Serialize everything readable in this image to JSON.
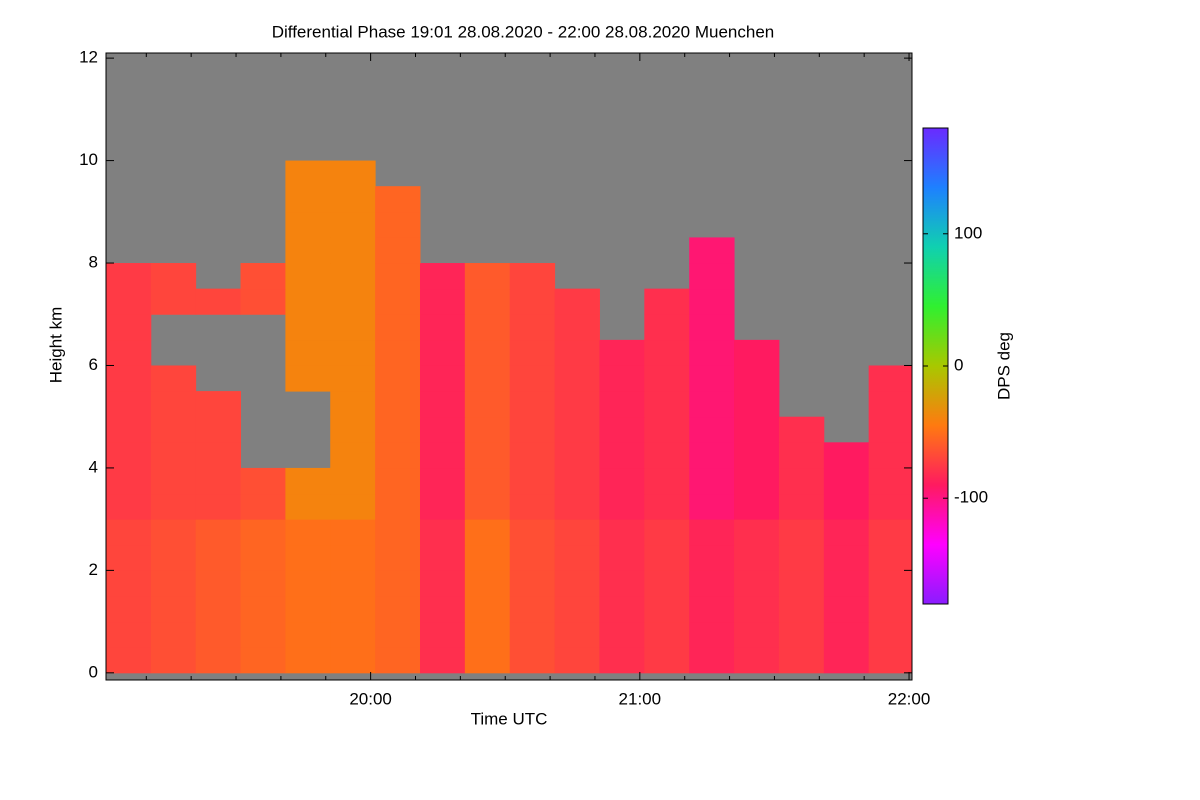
{
  "chart_data": {
    "type": "heatmap",
    "title": "Differential Phase   19:01 28.08.2020 - 22:00 28.08.2020 Muenchen",
    "x_label": "Time UTC",
    "y_label": "Height km",
    "colorbar_label": "DPS deg",
    "missing_color": "#808080",
    "colorscale": [
      "#8a1cff",
      "#ff00ff",
      "#ff1a60",
      "#ff7a10",
      "#a8c800",
      "#30f030",
      "#10d0b0",
      "#1e80ff",
      "#6a2aff"
    ],
    "zlim": [
      -180,
      180
    ],
    "zticks": [
      -100,
      0,
      100
    ],
    "xlim": [
      19.017,
      22.011
    ],
    "xticks": [
      {
        "value": 20,
        "label": "20:00"
      },
      {
        "value": 21,
        "label": "21:00"
      },
      {
        "value": 22,
        "label": "22:00"
      }
    ],
    "xminorticks": [
      19.1667,
      19.3333,
      19.5,
      19.6667,
      19.8333,
      20.1667,
      20.3333,
      20.5,
      20.6667,
      20.8333,
      21.1667,
      21.3333,
      21.5,
      21.6667,
      21.8333
    ],
    "ylim": [
      -0.14,
      12.1
    ],
    "yticks": [
      0,
      2,
      4,
      6,
      8,
      10,
      12
    ],
    "x": [
      19.1,
      19.2667,
      19.4333,
      19.6,
      19.7667,
      19.9333,
      20.1,
      20.2667,
      20.4333,
      20.6,
      20.7667,
      20.9333,
      21.1,
      21.2667,
      21.4333,
      21.6,
      21.7667,
      21.9333
    ],
    "y": [
      0.25,
      0.75,
      1.25,
      1.75,
      2.25,
      2.75,
      3.25,
      3.75,
      4.25,
      4.75,
      5.25,
      5.75,
      6.25,
      6.75,
      7.25,
      7.75,
      8.25,
      8.75,
      9.25,
      9.75
    ],
    "z": [
      [
        -70,
        -65,
        -60,
        -55,
        -50,
        -50,
        -55,
        -80,
        -50,
        -65,
        -70,
        -80,
        -75,
        -85,
        -80,
        -75,
        -85,
        -75
      ],
      [
        -70,
        -65,
        -60,
        -55,
        -50,
        -50,
        -55,
        -80,
        -50,
        -65,
        -70,
        -80,
        -75,
        -85,
        -80,
        -75,
        -85,
        -75
      ],
      [
        -70,
        -65,
        -60,
        -55,
        -50,
        -50,
        -55,
        -80,
        -50,
        -65,
        -70,
        -80,
        -75,
        -85,
        -80,
        -75,
        -85,
        -75
      ],
      [
        -70,
        -65,
        -60,
        -55,
        -50,
        -50,
        -55,
        -80,
        -50,
        -65,
        -70,
        -80,
        -75,
        -85,
        -80,
        -75,
        -85,
        -75
      ],
      [
        -70,
        -65,
        -60,
        -55,
        -50,
        -50,
        -55,
        -80,
        -50,
        -65,
        -70,
        -80,
        -75,
        -85,
        -80,
        -75,
        -85,
        -75
      ],
      [
        -70,
        -65,
        -60,
        -55,
        -50,
        -50,
        -55,
        -80,
        -50,
        -65,
        -70,
        -80,
        -75,
        -85,
        -80,
        -75,
        -85,
        -75
      ],
      [
        -75,
        -70,
        -70,
        -65,
        -40,
        -40,
        -55,
        -85,
        -60,
        -70,
        -75,
        -85,
        -80,
        -95,
        -90,
        -80,
        -90,
        -80
      ],
      [
        -75,
        -70,
        -70,
        -65,
        -40,
        -40,
        -55,
        -85,
        -60,
        -70,
        -75,
        -85,
        -80,
        -95,
        -90,
        -80,
        -90,
        -80
      ],
      [
        -75,
        -70,
        -70,
        null,
        null,
        -40,
        -55,
        -85,
        -60,
        -70,
        -75,
        -85,
        -80,
        -95,
        -90,
        -80,
        -90,
        -80
      ],
      [
        -75,
        -70,
        -70,
        null,
        null,
        -40,
        -55,
        -85,
        -60,
        -70,
        -75,
        -85,
        -80,
        -95,
        -90,
        -80,
        null,
        -80
      ],
      [
        -75,
        -70,
        -70,
        null,
        null,
        -40,
        -55,
        -85,
        -60,
        -70,
        -75,
        -85,
        -80,
        -95,
        -90,
        null,
        null,
        -80
      ],
      [
        -75,
        -70,
        null,
        null,
        -40,
        -40,
        -55,
        -85,
        -60,
        -70,
        -75,
        -85,
        -80,
        -95,
        -90,
        null,
        null,
        -80
      ],
      [
        -75,
        null,
        null,
        null,
        -40,
        -40,
        -55,
        -85,
        -60,
        -70,
        -75,
        -85,
        -80,
        -95,
        -90,
        null,
        null,
        null
      ],
      [
        -75,
        null,
        null,
        null,
        -40,
        -40,
        -55,
        -85,
        -60,
        -70,
        -75,
        null,
        -80,
        -95,
        null,
        null,
        null,
        null
      ],
      [
        -75,
        -70,
        -70,
        -65,
        -40,
        -40,
        -55,
        -85,
        -60,
        -70,
        -75,
        null,
        -80,
        -95,
        null,
        null,
        null,
        null
      ],
      [
        -75,
        -70,
        null,
        -65,
        -40,
        -40,
        -55,
        -85,
        -60,
        -70,
        null,
        null,
        null,
        -95,
        null,
        null,
        null,
        null
      ],
      [
        null,
        null,
        null,
        null,
        -40,
        -40,
        -55,
        null,
        null,
        null,
        null,
        null,
        null,
        -95,
        null,
        null,
        null,
        null
      ],
      [
        null,
        null,
        null,
        null,
        -40,
        -40,
        -55,
        null,
        null,
        null,
        null,
        null,
        null,
        null,
        null,
        null,
        null,
        null
      ],
      [
        null,
        null,
        null,
        null,
        -40,
        -40,
        -55,
        null,
        null,
        null,
        null,
        null,
        null,
        null,
        null,
        null,
        null,
        null
      ],
      [
        null,
        null,
        null,
        null,
        -40,
        -40,
        null,
        null,
        null,
        null,
        null,
        null,
        null,
        null,
        null,
        null,
        null,
        null
      ]
    ]
  }
}
